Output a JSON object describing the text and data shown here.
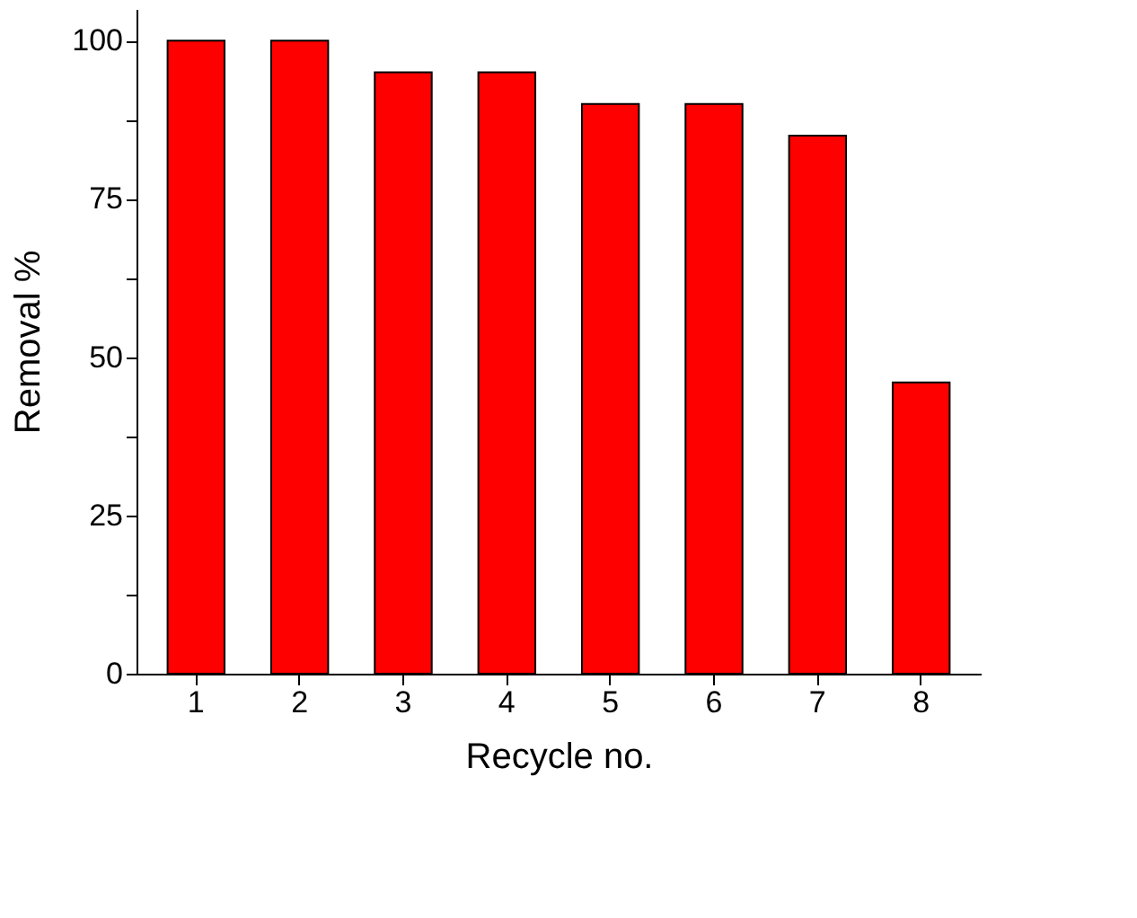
{
  "chart_data": {
    "type": "bar",
    "xlabel": "Recycle no.",
    "ylabel": "Removal %",
    "categories": [
      "1",
      "2",
      "3",
      "4",
      "5",
      "6",
      "7",
      "8"
    ],
    "values": [
      100,
      100,
      95,
      95,
      90,
      90,
      85,
      46
    ],
    "color": "#ff0000",
    "ylim": [
      0,
      105
    ],
    "yticks": [
      0,
      {
        "value": 12.5,
        "label": null
      },
      25,
      {
        "value": 37.5,
        "label": null
      },
      50,
      {
        "value": 62.5,
        "label": null
      },
      75,
      {
        "value": 87.5,
        "label": null
      },
      100
    ],
    "grid": false
  }
}
